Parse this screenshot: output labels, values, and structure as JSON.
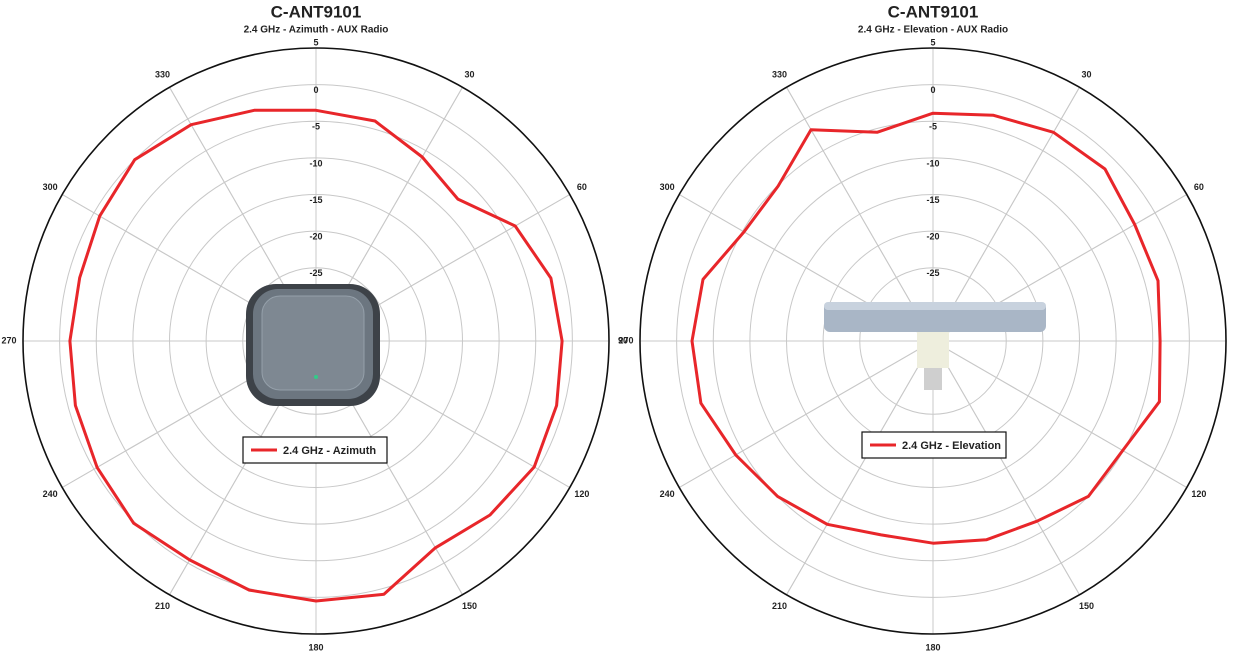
{
  "chart_data": [
    {
      "type": "polar",
      "title": "C-ANT9101",
      "subtitle": "2.4 GHz - Azimuth - AUX Radio",
      "theta": [
        0,
        15,
        30,
        45,
        60,
        75,
        90,
        105,
        120,
        135,
        150,
        165,
        180,
        195,
        210,
        225,
        240,
        255,
        270,
        285,
        300,
        315,
        330,
        345
      ],
      "series": [
        {
          "name": "2.4 GHz - Azimuth",
          "color": "#e8262a",
          "values": [
            -3.5,
            -3.9,
            -6,
            -7.6,
            -3.6,
            -1.8,
            -1.4,
            -1,
            -0.6,
            -1.4,
            -2.4,
            0.8,
            0.5,
            0.2,
            -0.5,
            0.2,
            -0.5,
            -1,
            -1.4,
            -1.6,
            -0.9,
            0,
            -0.9,
            -2.4
          ]
        }
      ],
      "rlim": [
        -35,
        5
      ],
      "rticks": [
        5,
        0,
        -5,
        -10,
        -15,
        -20,
        -25
      ],
      "angle_ticks": [
        30,
        60,
        90,
        120,
        150,
        180,
        210,
        240,
        270,
        300,
        330
      ],
      "grid": true
    },
    {
      "type": "polar",
      "title": "C-ANT9101",
      "subtitle": "2.4 GHz - Elevation - AUX Radio",
      "theta": [
        0,
        15,
        30,
        45,
        60,
        75,
        90,
        105,
        120,
        135,
        150,
        165,
        180,
        195,
        210,
        225,
        240,
        255,
        270,
        285,
        300,
        315,
        330,
        345
      ],
      "series": [
        {
          "name": "2.4 GHz - Elevation",
          "color": "#e8262a",
          "values": [
            -3.9,
            -3.1,
            -2.1,
            -1.8,
            -3.2,
            -3.2,
            -4,
            -3,
            -5.1,
            -5,
            -6.6,
            -6.9,
            -7.4,
            -7.6,
            -6.1,
            -5,
            -3.9,
            -2.2,
            -2.1,
            -2.5,
            -5.2,
            -5.1,
            -1.7,
            -5.5
          ]
        }
      ],
      "rlim": [
        -35,
        5
      ],
      "rticks": [
        5,
        0,
        -5,
        -10,
        -15,
        -20,
        -25
      ],
      "angle_ticks": [
        30,
        60,
        90,
        120,
        150,
        180,
        210,
        240,
        270,
        300,
        330
      ],
      "grid": true
    }
  ]
}
